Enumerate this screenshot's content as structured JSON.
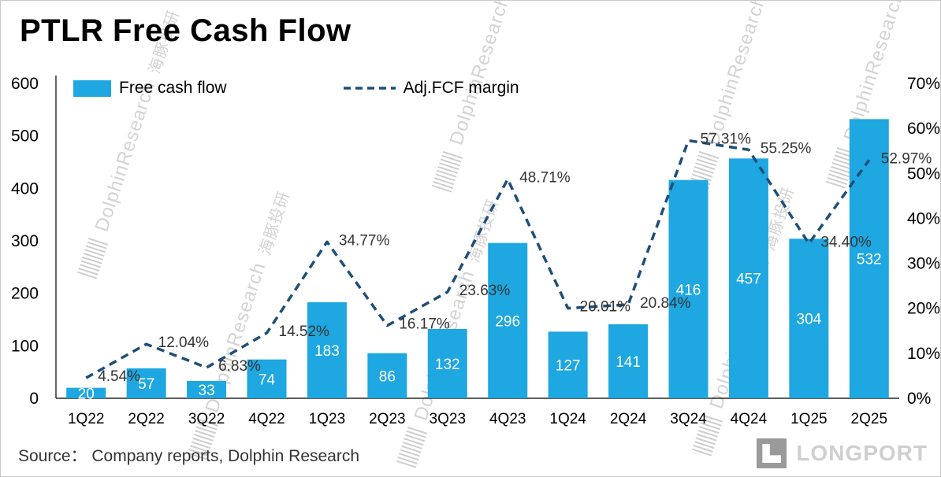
{
  "title": "PTLR Free Cash Flow",
  "legend": {
    "bar_label": "Free cash flow",
    "line_label": "Adj.FCF margin"
  },
  "source": "Source：  Company reports, Dolphin Research",
  "watermark": {
    "latin": "DolphinResearch",
    "cn": "海豚投研"
  },
  "logo_text": "LONGPORT",
  "colors": {
    "bar": "#1EA7E1",
    "line": "#1F4E79",
    "axis": "#262626",
    "margin_label": "#333333",
    "bar_label": "#FFFFFF"
  },
  "chart_data": {
    "type": "bar",
    "subtype": "bar+line combo",
    "title": "PTLR Free Cash Flow",
    "categories": [
      "1Q22",
      "2Q22",
      "3Q22",
      "4Q22",
      "1Q23",
      "2Q23",
      "3Q23",
      "4Q23",
      "1Q24",
      "2Q24",
      "3Q24",
      "4Q24",
      "1Q25",
      "2Q25"
    ],
    "series": [
      {
        "name": "Free cash flow",
        "type": "bar",
        "axis": "left",
        "values": [
          20,
          57,
          33,
          74,
          183,
          86,
          132,
          296,
          127,
          141,
          416,
          457,
          304,
          532
        ]
      },
      {
        "name": "Adj.FCF margin",
        "type": "line",
        "style": "dashed",
        "axis": "right",
        "values": [
          4.54,
          12.04,
          6.83,
          14.52,
          34.77,
          16.17,
          23.63,
          48.71,
          20.01,
          20.84,
          57.31,
          55.25,
          34.4,
          52.97
        ],
        "labels": [
          "4.54%",
          "12.04%",
          "6.83%",
          "14.52%",
          "34.77%",
          "16.17%",
          "23.63%",
          "48.71%",
          "20.01%",
          "20.84%",
          "57.31%",
          "55.25%",
          "34.40%",
          "52.97%"
        ]
      }
    ],
    "left_axis": {
      "min": 0,
      "max": 600,
      "ticks": [
        0,
        100,
        200,
        300,
        400,
        500,
        600
      ]
    },
    "right_axis": {
      "min": 0,
      "max": 70,
      "ticks": [
        0,
        10,
        20,
        30,
        40,
        50,
        60,
        70
      ],
      "tick_suffix": "%"
    },
    "grid": false,
    "legend_position": "top-left"
  }
}
